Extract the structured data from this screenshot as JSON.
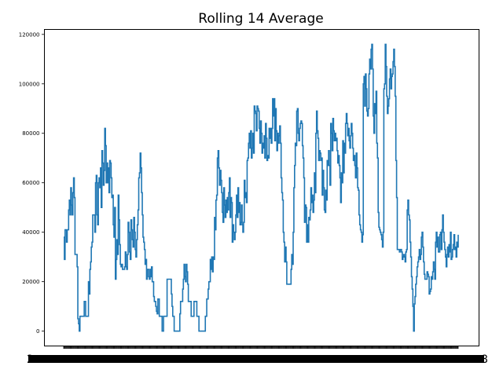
{
  "chart_data": {
    "type": "line",
    "title": "Rolling 14 Average",
    "xlabel": "",
    "ylabel": "",
    "ylim": [
      -6000,
      122000
    ],
    "yticks": [
      0,
      20000,
      40000,
      60000,
      80000,
      100000,
      120000
    ],
    "xtick_labels": {
      "first": "2",
      "last": "8"
    },
    "grid": false,
    "legend": "none",
    "series": [
      {
        "color": "#1f77b4",
        "values": [
          38000,
          29000,
          41000,
          41000,
          36000,
          41000,
          41000,
          49000,
          53000,
          47000,
          58000,
          51000,
          47000,
          56000,
          62000,
          54000,
          31000,
          31000,
          31000,
          26000,
          5000,
          3000,
          0,
          6000,
          6000,
          6000,
          6000,
          6000,
          6000,
          12000,
          12000,
          6000,
          6000,
          6000,
          6000,
          20000,
          15000,
          25000,
          28000,
          34000,
          36000,
          47000,
          47000,
          47000,
          40000,
          60000,
          63000,
          47000,
          43000,
          60000,
          62000,
          58000,
          66000,
          50000,
          73000,
          68000,
          59000,
          65000,
          82000,
          75000,
          60000,
          68000,
          60000,
          66000,
          56000,
          69000,
          68000,
          62000,
          54000,
          55000,
          43000,
          38000,
          50000,
          21000,
          29000,
          37000,
          31000,
          55000,
          45000,
          35000,
          27000,
          26000,
          27000,
          25000,
          25000,
          25000,
          26000,
          32000,
          26000,
          25000,
          31000,
          44000,
          40000,
          32000,
          29000,
          45000,
          41000,
          37000,
          34000,
          46000,
          40000,
          33000,
          30000,
          37000,
          43000,
          49000,
          62000,
          64000,
          72000,
          66000,
          56000,
          47000,
          38000,
          36000,
          33000,
          27000,
          29000,
          21000,
          25000,
          25000,
          22000,
          21000,
          25000,
          22000,
          26000,
          20000,
          20000,
          14000,
          12000,
          12000,
          10000,
          8000,
          7000,
          13000,
          13000,
          6000,
          6000,
          6000,
          6000,
          0,
          0,
          6000,
          6000,
          6000,
          6000,
          6000,
          21000,
          21000,
          21000,
          21000,
          21000,
          21000,
          15000,
          10000,
          6000,
          6000,
          0,
          0,
          0,
          0,
          0,
          0,
          0,
          0,
          7000,
          12000,
          12000,
          12000,
          17000,
          21000,
          27000,
          22000,
          20000,
          27000,
          24000,
          19000,
          12000,
          12000,
          12000,
          12000,
          6000,
          6000,
          6000,
          6000,
          12000,
          12000,
          12000,
          12000,
          6000,
          6000,
          6000,
          0,
          0,
          0,
          0,
          0,
          0,
          0,
          0,
          0,
          6000,
          6000,
          13000,
          13000,
          17000,
          20000,
          20000,
          29000,
          25000,
          30000,
          24000,
          30000,
          29000,
          46000,
          41000,
          53000,
          55000,
          70000,
          73000,
          66000,
          59000,
          65000,
          61000,
          56000,
          48000,
          44000,
          58000,
          51000,
          46000,
          53000,
          48000,
          54000,
          49000,
          56000,
          62000,
          46000,
          54000,
          52000,
          36000,
          43000,
          40000,
          37000,
          40000,
          47000,
          55000,
          46000,
          58000,
          48000,
          52000,
          43000,
          44000,
          51000,
          43000,
          40000,
          44000,
          61000,
          54000,
          56000,
          52000,
          69000,
          70000,
          76000,
          80000,
          74000,
          81000,
          70000,
          74000,
          80000,
          72000,
          91000,
          89000,
          88000,
          81000,
          91000,
          90000,
          89000,
          82000,
          76000,
          85000,
          80000,
          72000,
          76000,
          74000,
          79000,
          70000,
          84000,
          78000,
          69000,
          71000,
          70000,
          82000,
          78000,
          82000,
          76000,
          82000,
          94000,
          87000,
          94000,
          77000,
          90000,
          81000,
          73000,
          80000,
          76000,
          79000,
          83000,
          76000,
          62000,
          56000,
          53000,
          40000,
          36000,
          28000,
          34000,
          28000,
          19000,
          19000,
          19000,
          19000,
          19000,
          19000,
          25000,
          31000,
          27000,
          40000,
          58000,
          67000,
          76000,
          75000,
          89000,
          90000,
          80000,
          77000,
          82000,
          84000,
          85000,
          84000,
          75000,
          70000,
          62000,
          44000,
          51000,
          50000,
          36000,
          43000,
          36000,
          46000,
          45000,
          49000,
          58000,
          52000,
          55000,
          48000,
          53000,
          64000,
          56000,
          80000,
          89000,
          81000,
          78000,
          69000,
          73000,
          72000,
          69000,
          70000,
          55000,
          65000,
          58000,
          49000,
          48000,
          57000,
          53000,
          69000,
          67000,
          73000,
          67000,
          59000,
          84000,
          80000,
          73000,
          86000,
          81000,
          77000,
          80000,
          77000,
          78000,
          73000,
          68000,
          71000,
          67000,
          62000,
          52000,
          64000,
          60000,
          77000,
          64000,
          76000,
          72000,
          84000,
          88000,
          84000,
          79000,
          82000,
          77000,
          74000,
          79000,
          84000,
          80000,
          74000,
          69000,
          71000,
          67000,
          62000,
          72000,
          66000,
          58000,
          57000,
          47000,
          43000,
          41000,
          40000,
          36000,
          39000,
          100000,
          103000,
          91000,
          104000,
          98000,
          89000,
          87000,
          90000,
          104000,
          110000,
          106000,
          114000,
          116000,
          106000,
          87000,
          80000,
          92000,
          88000,
          97000,
          76000,
          70000,
          48000,
          42000,
          41000,
          40000,
          39000,
          37000,
          34000,
          40000,
          98000,
          100000,
          116000,
          107000,
          95000,
          88000,
          91000,
          94000,
          102000,
          106000,
          98000,
          103000,
          104000,
          109000,
          114000,
          107000,
          95000,
          69000,
          54000,
          33000,
          33000,
          33000,
          32000,
          33000,
          33000,
          32000,
          29000,
          30000,
          31000,
          30000,
          28000,
          32000,
          33000,
          49000,
          53000,
          47000,
          45000,
          36000,
          30000,
          22000,
          17000,
          10000,
          0,
          11000,
          14000,
          19000,
          22000,
          26000,
          28000,
          30000,
          33000,
          29000,
          31000,
          38000,
          40000,
          34000,
          28000,
          23000,
          21000,
          21000,
          21000,
          24000,
          23000,
          22000,
          15000,
          16000,
          17000,
          22000,
          21000,
          24000,
          28000,
          25000,
          21000,
          36000,
          40000,
          34000,
          38000,
          32000,
          32000,
          39000,
          40000,
          33000,
          41000,
          47000,
          40000,
          36000,
          33000,
          30000,
          26000,
          31000,
          34000,
          30000,
          35000,
          32000,
          40000,
          29000,
          30000,
          33000,
          35000,
          39000,
          33000,
          34000,
          30000,
          36000,
          34000,
          39000
        ]
      }
    ]
  }
}
